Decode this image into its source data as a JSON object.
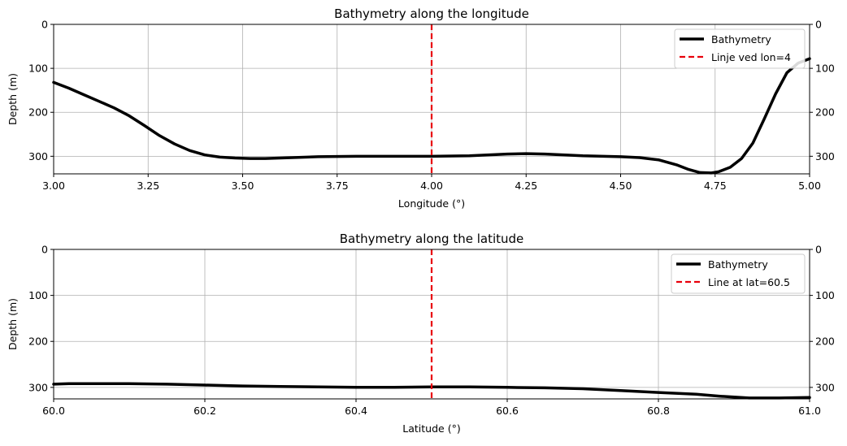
{
  "chart_data": [
    {
      "type": "line",
      "title": "Bathymetry along the longitude",
      "xlabel": "Longitude (°)",
      "ylabel": "Depth (m)",
      "xlim": [
        3.0,
        5.0
      ],
      "ylim": [
        340,
        0
      ],
      "y_inverted": true,
      "grid": true,
      "legend_placement": "top-right",
      "xticks": [
        "3.00",
        "3.25",
        "3.50",
        "3.75",
        "4.00",
        "4.25",
        "4.50",
        "4.75",
        "5.00"
      ],
      "xtick_values": [
        3.0,
        3.25,
        3.5,
        3.75,
        4.0,
        4.25,
        4.5,
        4.75,
        5.0
      ],
      "yticks": [
        "0",
        "100",
        "200",
        "300"
      ],
      "ytick_values": [
        0,
        100,
        200,
        300
      ],
      "series": [
        {
          "name": "Bathymetry",
          "color": "#000000",
          "style": "solid",
          "x": [
            3.0,
            3.04,
            3.08,
            3.12,
            3.16,
            3.2,
            3.24,
            3.28,
            3.32,
            3.36,
            3.4,
            3.44,
            3.48,
            3.52,
            3.56,
            3.6,
            3.7,
            3.8,
            3.9,
            4.0,
            4.1,
            4.2,
            4.25,
            4.3,
            4.4,
            4.5,
            4.55,
            4.6,
            4.65,
            4.68,
            4.71,
            4.74,
            4.76,
            4.79,
            4.82,
            4.85,
            4.88,
            4.91,
            4.94,
            4.97,
            5.0
          ],
          "y": [
            132,
            145,
            160,
            175,
            190,
            208,
            230,
            253,
            272,
            287,
            297,
            302,
            304,
            305,
            305,
            304,
            301,
            300,
            300,
            300,
            299,
            295,
            294,
            295,
            299,
            301,
            303,
            308,
            320,
            330,
            337,
            338,
            335,
            325,
            305,
            270,
            215,
            158,
            110,
            88,
            78
          ]
        },
        {
          "name": "Linje ved lon=4",
          "color": "#e8000b",
          "style": "dashed",
          "vertical_line_x": 4.0
        }
      ]
    },
    {
      "type": "line",
      "title": "Bathymetry along the latitude",
      "xlabel": "Latitude (°)",
      "ylabel": "Depth (m)",
      "xlim": [
        60.0,
        61.0
      ],
      "ylim": [
        325,
        0
      ],
      "y_inverted": true,
      "grid": true,
      "legend_placement": "top-right",
      "xticks": [
        "60.0",
        "60.2",
        "60.4",
        "60.6",
        "60.8",
        "61.0"
      ],
      "xtick_values": [
        60.0,
        60.2,
        60.4,
        60.6,
        60.8,
        61.0
      ],
      "yticks": [
        "0",
        "100",
        "200",
        "300"
      ],
      "ytick_values": [
        0,
        100,
        200,
        300
      ],
      "series": [
        {
          "name": "Bathymetry",
          "color": "#000000",
          "style": "solid",
          "x": [
            60.0,
            60.02,
            60.05,
            60.1,
            60.15,
            60.2,
            60.25,
            60.3,
            60.35,
            60.4,
            60.45,
            60.5,
            60.55,
            60.6,
            60.65,
            60.7,
            60.75,
            60.8,
            60.85,
            60.88,
            60.92,
            60.96,
            61.0
          ],
          "y": [
            293,
            292,
            292,
            292,
            293,
            295,
            297,
            298,
            299,
            300,
            300,
            299,
            299,
            300,
            301,
            303,
            307,
            311,
            315,
            319,
            323,
            323,
            322
          ]
        },
        {
          "name": "Line at lat=60.5",
          "color": "#e8000b",
          "style": "dashed",
          "vertical_line_x": 60.5
        }
      ]
    }
  ]
}
